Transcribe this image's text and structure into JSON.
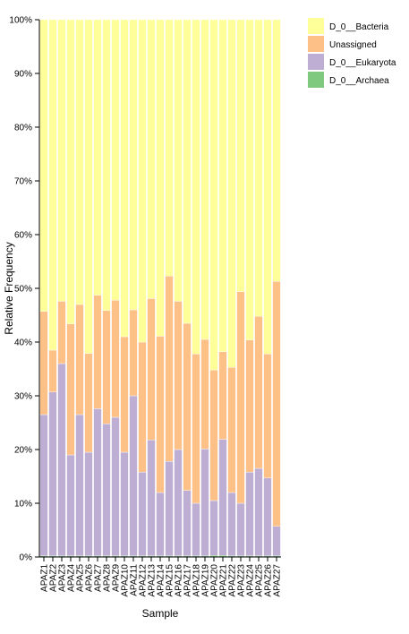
{
  "chart_data": {
    "type": "bar",
    "stacked": true,
    "normalized": true,
    "xlabel": "Sample",
    "ylabel": "Relative Frequency",
    "ylim": [
      0,
      100
    ],
    "yticks": [
      "0%",
      "10%",
      "20%",
      "30%",
      "40%",
      "50%",
      "60%",
      "70%",
      "80%",
      "90%",
      "100%"
    ],
    "categories": [
      "APAZ1",
      "APAZ2",
      "APAZ3",
      "APAZ4",
      "APAZ5",
      "APAZ6",
      "APAZ7",
      "APAZ8",
      "APAZ9",
      "APAZ10",
      "APAZ11",
      "APAZ12",
      "APAZ13",
      "APAZ14",
      "APAZ15",
      "APAZ16",
      "APAZ17",
      "APAZ18",
      "APAZ19",
      "APAZ20",
      "APAZ21",
      "APAZ22",
      "APAZ23",
      "APAZ24",
      "APAZ25",
      "APAZ26",
      "APAZ27"
    ],
    "series": [
      {
        "name": "D_0__Archaea",
        "color": "#7fc97f",
        "values": [
          0.2,
          0.2,
          0.2,
          0.2,
          0.2,
          0.2,
          0.2,
          0.2,
          0.2,
          0.2,
          0.2,
          0.2,
          0.2,
          0.2,
          0.2,
          0.2,
          0.2,
          0.2,
          0.2,
          0.3,
          0.3,
          0.2,
          0.2,
          0.2,
          0.2,
          0.2,
          0.2
        ]
      },
      {
        "name": "D_0__Eukaryota",
        "color": "#beaed4",
        "values": [
          26.3,
          30.5,
          35.8,
          18.8,
          26.3,
          19.3,
          27.4,
          24.6,
          25.8,
          19.3,
          29.8,
          15.6,
          21.6,
          11.8,
          17.6,
          19.8,
          12.2,
          9.8,
          19.9,
          10.2,
          21.6,
          11.8,
          9.8,
          15.6,
          16.3,
          14.5,
          5.5
        ]
      },
      {
        "name": "Unassigned",
        "color": "#fdc086",
        "values": [
          19.2,
          7.8,
          11.6,
          24.4,
          20.5,
          18.4,
          21.1,
          21.1,
          21.8,
          21.5,
          16.0,
          24.2,
          26.3,
          29.1,
          34.5,
          27.6,
          31.1,
          27.8,
          20.4,
          24.3,
          16.3,
          23.3,
          39.4,
          24.6,
          28.3,
          23.1,
          45.6
        ]
      },
      {
        "name": "D_0__Bacteria",
        "color": "#ffff99",
        "values": [
          54.3,
          61.5,
          52.4,
          56.6,
          53.0,
          62.1,
          51.3,
          54.1,
          52.2,
          59.0,
          54.0,
          60.0,
          51.9,
          58.9,
          47.7,
          52.4,
          56.5,
          62.2,
          59.5,
          65.2,
          61.8,
          64.7,
          50.6,
          59.6,
          55.2,
          62.2,
          48.7
        ]
      }
    ],
    "legend": {
      "placement": "top-right",
      "entries": [
        "D_0__Bacteria",
        "Unassigned",
        "D_0__Eukaryota",
        "D_0__Archaea"
      ]
    },
    "grid": false
  }
}
